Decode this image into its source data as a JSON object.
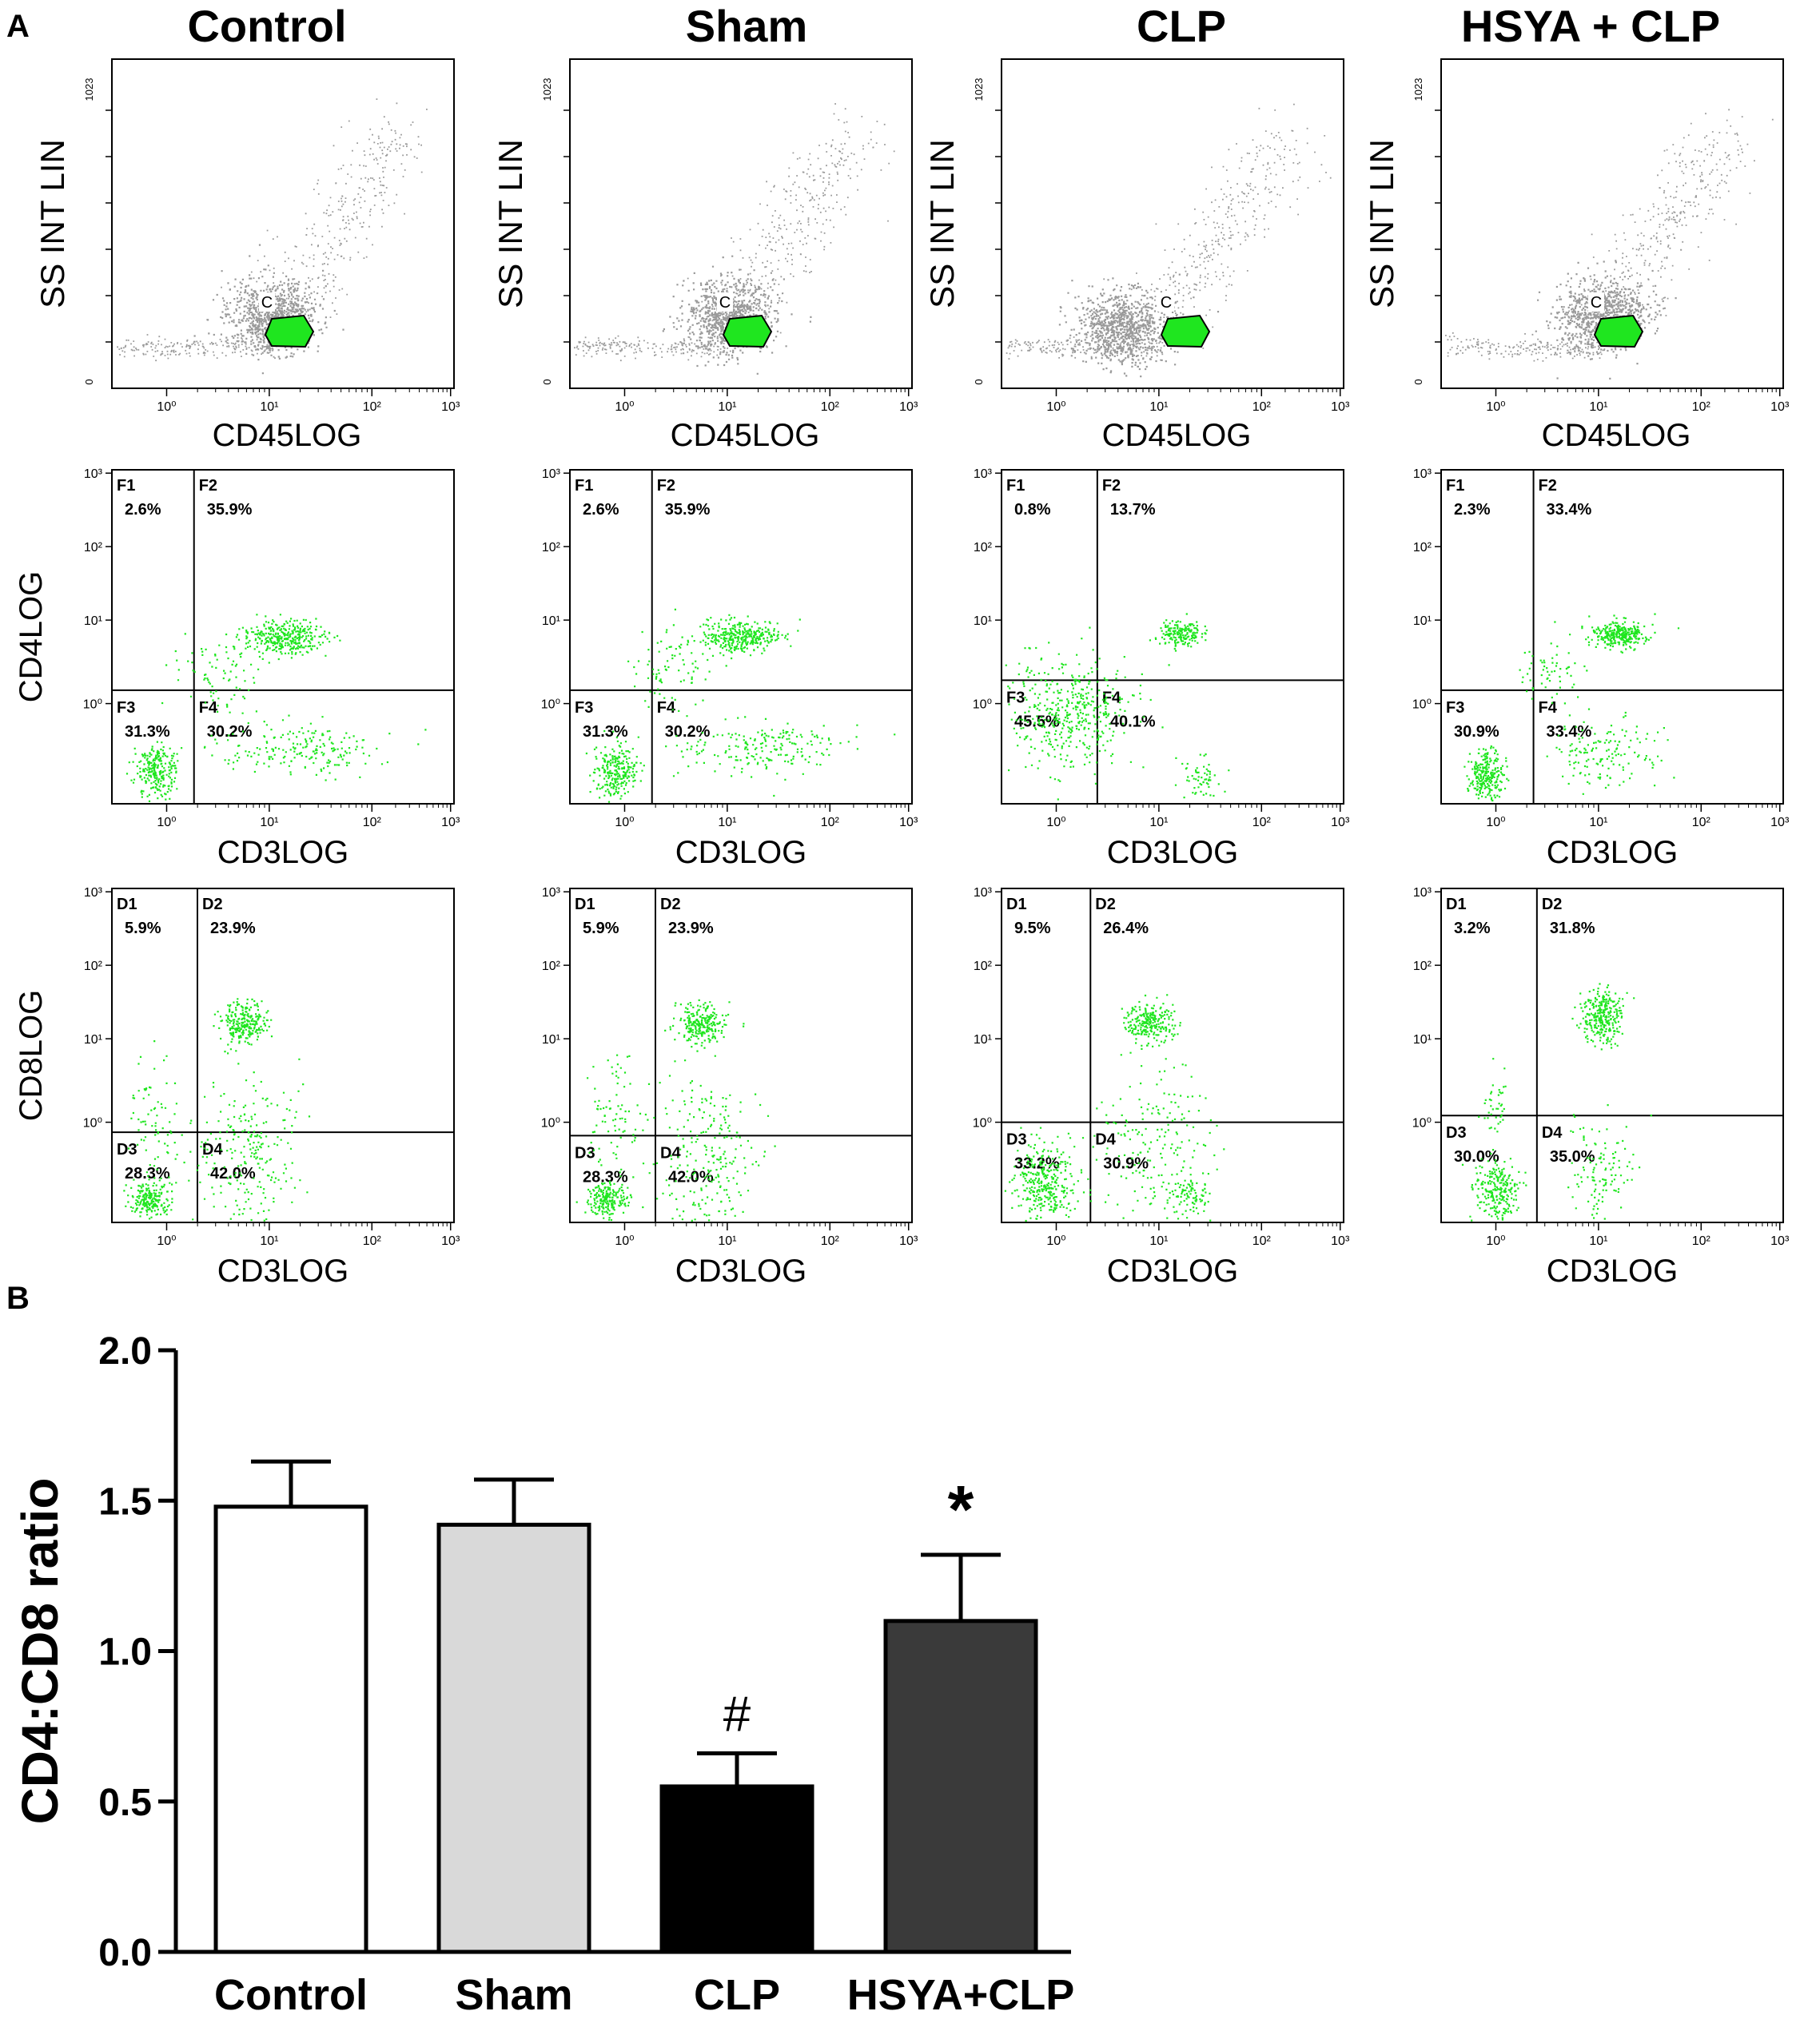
{
  "panel_a": {
    "label": "A",
    "groups": [
      "Control",
      "Sham",
      "CLP",
      "HSYA + CLP"
    ],
    "row1": {
      "ylabel": "SS INT LIN",
      "xlabel": "CD45LOG",
      "ymax_tick": "1023",
      "ymin_tick": "0",
      "gate_label": "C"
    },
    "row2": {
      "ylabel": "CD4LOG",
      "xlabel": "CD3LOG",
      "quadrant_names": [
        "F1",
        "F2",
        "F3",
        "F4"
      ],
      "values": [
        [
          "2.6%",
          "35.9%",
          "31.3%",
          "30.2%"
        ],
        [
          "2.6%",
          "35.9%",
          "31.3%",
          "30.2%"
        ],
        [
          "0.8%",
          "13.7%",
          "45.5%",
          "40.1%"
        ],
        [
          "2.3%",
          "33.4%",
          "30.9%",
          "33.4%"
        ]
      ]
    },
    "row3": {
      "ylabel": "CD8LOG",
      "xlabel": "CD3LOG",
      "quadrant_names": [
        "D1",
        "D2",
        "D3",
        "D4"
      ],
      "values": [
        [
          "5.9%",
          "23.9%",
          "28.3%",
          "42.0%"
        ],
        [
          "5.9%",
          "23.9%",
          "28.3%",
          "42.0%"
        ],
        [
          "9.5%",
          "26.4%",
          "33.2%",
          "30.9%"
        ],
        [
          "3.2%",
          "31.8%",
          "30.0%",
          "35.0%"
        ]
      ]
    },
    "log_ticks": [
      "10⁰",
      "10¹",
      "10²",
      "10³"
    ],
    "colors": {
      "gated_events": "#1fe61f",
      "ungated_events": "#9a9a9a"
    }
  },
  "panel_b": {
    "label": "B"
  },
  "chart_data": {
    "type": "bar",
    "title": "",
    "xlabel": "",
    "ylabel": "CD4:CD8  ratio",
    "categories": [
      "Control",
      "Sham",
      "CLP",
      "HSYA+CLP"
    ],
    "values": [
      1.48,
      1.42,
      0.55,
      1.1
    ],
    "errors": [
      0.15,
      0.15,
      0.11,
      0.22
    ],
    "annotations": [
      "",
      "",
      "#",
      "*"
    ],
    "ylim": [
      0.0,
      2.0
    ],
    "yticks": [
      "0.0",
      "0.5",
      "1.0",
      "1.5",
      "2.0"
    ],
    "bar_colors": [
      "#ffffff",
      "#d9d9d9",
      "#000000",
      "#3a3a3a"
    ]
  }
}
